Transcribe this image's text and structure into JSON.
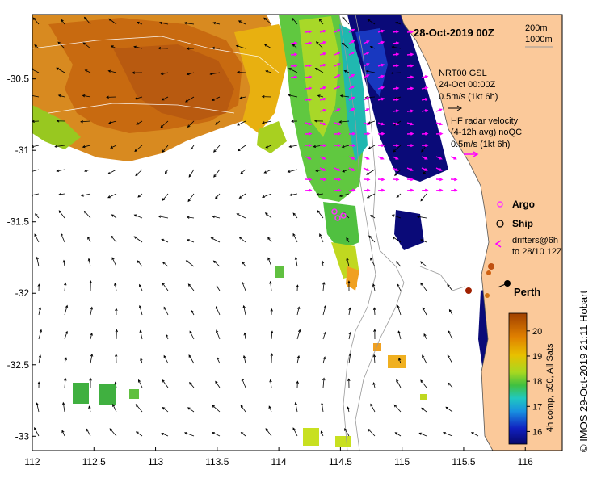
{
  "map": {
    "date_title": "28-Oct-2019 00Z",
    "contour_label_1": "200m",
    "contour_label_2": "1000m",
    "x_ticks": [
      "112",
      "112.5",
      "113",
      "113.5",
      "114",
      "114.5",
      "115",
      "115.5",
      "116"
    ],
    "y_ticks": [
      "-30.5",
      "-31",
      "-31.5",
      "-32",
      "-32.5",
      "-33"
    ],
    "lon_range": [
      112,
      116.3
    ],
    "lat_range": [
      -33.1,
      -30.05
    ],
    "city_label": "Perth",
    "credit": "© IMOS 29-Oct-2019 21:11 Hobart"
  },
  "legend": {
    "gsl_line1": "NRT00 GSL",
    "gsl_line2": "24-Oct 00:00Z",
    "gsl_line3": "0.5m/s (1kt 6h)",
    "hf_line1": "HF radar velocity",
    "hf_line2": "(4-12h avg) noQC",
    "hf_line3": "0.5m/s (1kt 6h)",
    "argo_label": "Argo",
    "ship_label": "Ship",
    "drifters_line1": "drifters@6h",
    "drifters_line2": "to 28/10 12Z"
  },
  "colorbar": {
    "ticks": [
      "20",
      "19",
      "18",
      "17",
      "16"
    ],
    "label": "4h comp, p50, All Sats",
    "range": [
      15.5,
      20.7
    ]
  },
  "colors": {
    "land": "#fbc99a",
    "coast": "#555555",
    "argo": "#ff33ff",
    "hf_arrow": "#ff00ff"
  }
}
